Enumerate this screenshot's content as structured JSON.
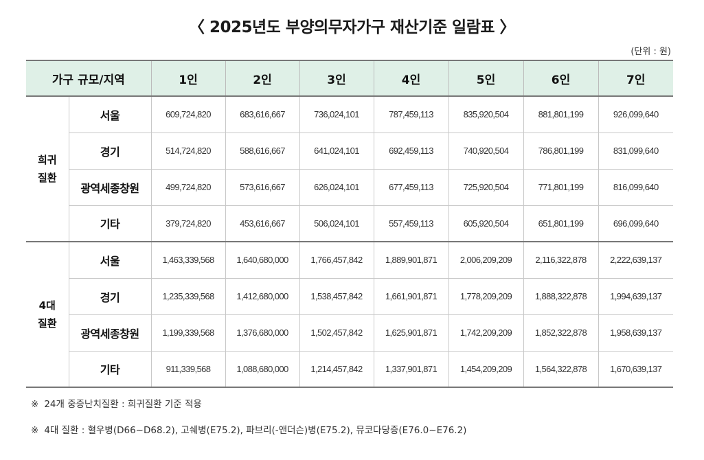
{
  "title": "〈 2025년도 부양의무자가구 재산기준 일람표 〉",
  "unit": "(단위 : 원)",
  "header": {
    "first": "가구 규모/지역",
    "columns": [
      "1인",
      "2인",
      "3인",
      "4인",
      "5인",
      "6인",
      "7인"
    ]
  },
  "groups": [
    {
      "label_line1": "희귀",
      "label_line2": "질환",
      "rows": [
        {
          "region": "서울",
          "values": [
            "609,724,820",
            "683,616,667",
            "736,024,101",
            "787,459,113",
            "835,920,504",
            "881,801,199",
            "926,099,640"
          ]
        },
        {
          "region": "경기",
          "values": [
            "514,724,820",
            "588,616,667",
            "641,024,101",
            "692,459,113",
            "740,920,504",
            "786,801,199",
            "831,099,640"
          ]
        },
        {
          "region": "광역세종창원",
          "values": [
            "499,724,820",
            "573,616,667",
            "626,024,101",
            "677,459,113",
            "725,920,504",
            "771,801,199",
            "816,099,640"
          ]
        },
        {
          "region": "기타",
          "values": [
            "379,724,820",
            "453,616,667",
            "506,024,101",
            "557,459,113",
            "605,920,504",
            "651,801,199",
            "696,099,640"
          ]
        }
      ]
    },
    {
      "label_line1": "4대",
      "label_line2": "질환",
      "rows": [
        {
          "region": "서울",
          "values": [
            "1,463,339,568",
            "1,640,680,000",
            "1,766,457,842",
            "1,889,901,871",
            "2,006,209,209",
            "2,116,322,878",
            "2,222,639,137"
          ]
        },
        {
          "region": "경기",
          "values": [
            "1,235,339,568",
            "1,412,680,000",
            "1,538,457,842",
            "1,661,901,871",
            "1,778,209,209",
            "1,888,322,878",
            "1,994,639,137"
          ]
        },
        {
          "region": "광역세종창원",
          "values": [
            "1,199,339,568",
            "1,376,680,000",
            "1,502,457,842",
            "1,625,901,871",
            "1,742,209,209",
            "1,852,322,878",
            "1,958,639,137"
          ]
        },
        {
          "region": "기타",
          "values": [
            "911,339,568",
            "1,088,680,000",
            "1,214,457,842",
            "1,337,901,871",
            "1,454,209,209",
            "1,564,322,878",
            "1,670,639,137"
          ]
        }
      ]
    }
  ],
  "notes": {
    "mark": "※",
    "note1": "24개 중증난치질환 : 희귀질환 기준 적용",
    "note2": "4대 질환 : 혈우병(D66~D68.2), 고쉐병(E75.2), 파브리(-앤더슨)병(E75.2), 뮤코다당증(E76.0~E76.2)"
  }
}
